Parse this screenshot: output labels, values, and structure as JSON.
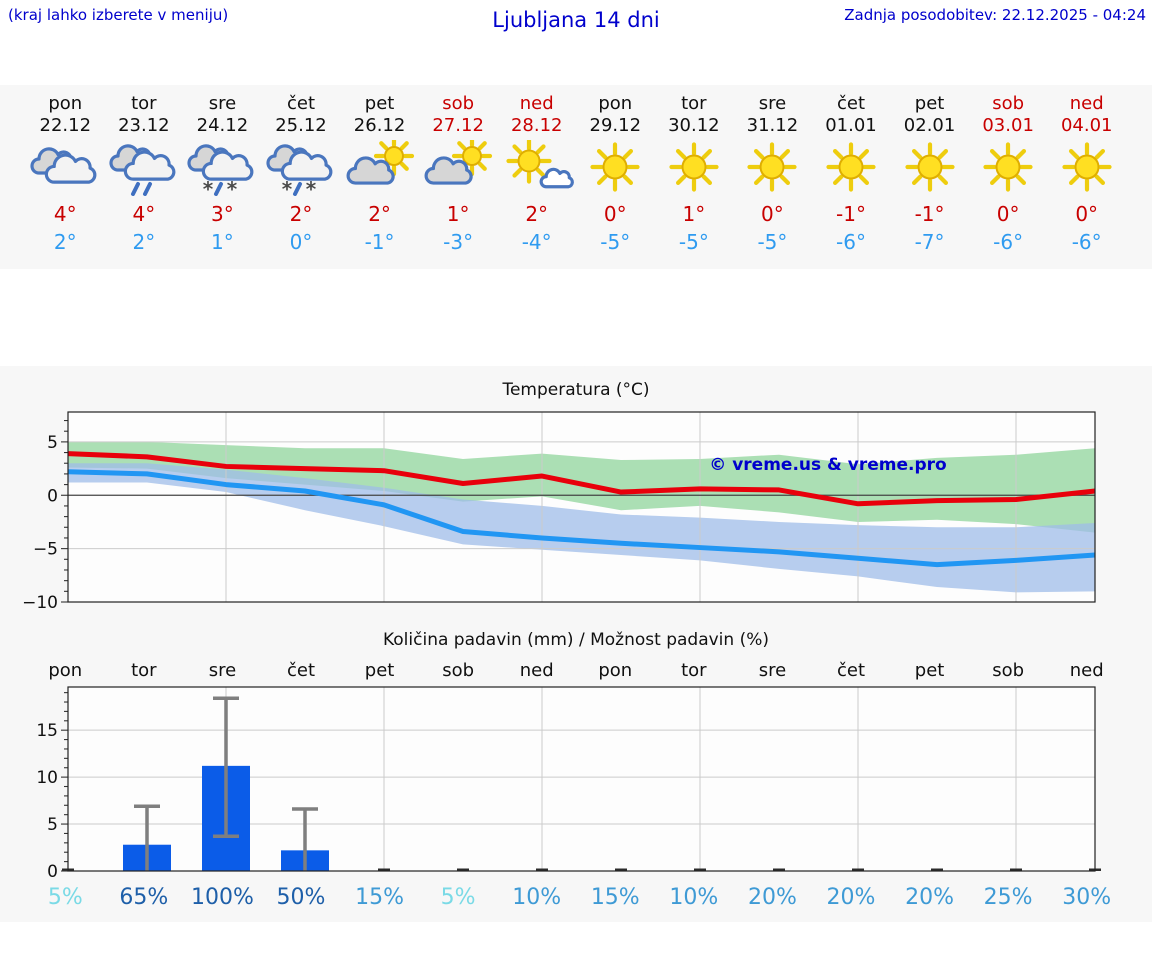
{
  "header": {
    "hint": "(kraj lahko izberete v meniju)",
    "title": "Ljubljana 14 dni",
    "updated": "Zadnja posodobitev: 22.12.2025 - 04:24"
  },
  "colors": {
    "accent_blue": "#0000cc",
    "weekend_red": "#c80000",
    "high_red": "#c80000",
    "low_blue": "#2f9bf0",
    "bar_blue": "#0b5ce8",
    "line_high": "#e8000b",
    "line_low": "#2196f3",
    "band_high": "#8fd49b",
    "band_low": "#9fbce8",
    "prob_low": "#7adae6",
    "prob_mid": "#3e9ad5",
    "prob_high": "#1e5fa9"
  },
  "days": [
    {
      "name": "pon",
      "date": "22.12",
      "weekend": false,
      "icon": "cloudy",
      "high": "4°",
      "low": "2°"
    },
    {
      "name": "tor",
      "date": "23.12",
      "weekend": false,
      "icon": "rain",
      "high": "4°",
      "low": "2°"
    },
    {
      "name": "sre",
      "date": "24.12",
      "weekend": false,
      "icon": "sleet",
      "high": "3°",
      "low": "1°"
    },
    {
      "name": "čet",
      "date": "25.12",
      "weekend": false,
      "icon": "sleet",
      "high": "2°",
      "low": "0°"
    },
    {
      "name": "pet",
      "date": "26.12",
      "weekend": false,
      "icon": "partly-sunny",
      "high": "2°",
      "low": "-1°"
    },
    {
      "name": "sob",
      "date": "27.12",
      "weekend": true,
      "icon": "partly-sunny",
      "high": "1°",
      "low": "-3°"
    },
    {
      "name": "ned",
      "date": "28.12",
      "weekend": true,
      "icon": "mostly-sunny",
      "high": "2°",
      "low": "-4°"
    },
    {
      "name": "pon",
      "date": "29.12",
      "weekend": false,
      "icon": "sunny",
      "high": "0°",
      "low": "-5°"
    },
    {
      "name": "tor",
      "date": "30.12",
      "weekend": false,
      "icon": "sunny",
      "high": "1°",
      "low": "-5°"
    },
    {
      "name": "sre",
      "date": "31.12",
      "weekend": false,
      "icon": "sunny",
      "high": "0°",
      "low": "-5°"
    },
    {
      "name": "čet",
      "date": "01.01",
      "weekend": false,
      "icon": "sunny",
      "high": "-1°",
      "low": "-6°"
    },
    {
      "name": "pet",
      "date": "02.01",
      "weekend": false,
      "icon": "sunny",
      "high": "-1°",
      "low": "-7°"
    },
    {
      "name": "sob",
      "date": "03.01",
      "weekend": true,
      "icon": "sunny",
      "high": "0°",
      "low": "-6°"
    },
    {
      "name": "ned",
      "date": "04.01",
      "weekend": true,
      "icon": "sunny",
      "high": "0°",
      "low": "-6°"
    }
  ],
  "chart_data": [
    {
      "type": "line",
      "title": "Temperatura (°C)",
      "categories": [
        "22.12",
        "23.12",
        "24.12",
        "25.12",
        "26.12",
        "27.12",
        "28.12",
        "29.12",
        "30.12",
        "31.12",
        "01.01",
        "02.01",
        "03.01",
        "04.01"
      ],
      "ylim": [
        -10,
        7.8
      ],
      "yticks": [
        5,
        0,
        -5,
        -10
      ],
      "grid": true,
      "watermark": "© vreme.us & vreme.pro",
      "series": [
        {
          "name": "temp-max",
          "color": "#e8000b",
          "values": [
            3.9,
            3.6,
            2.7,
            2.5,
            2.3,
            1.1,
            1.8,
            0.3,
            0.6,
            0.5,
            -0.8,
            -0.5,
            -0.4,
            0.4
          ]
        },
        {
          "name": "temp-min",
          "color": "#2196f3",
          "values": [
            2.2,
            2.0,
            1.0,
            0.4,
            -0.9,
            -3.4,
            -4.0,
            -4.5,
            -4.9,
            -5.3,
            -5.9,
            -6.5,
            -6.1,
            -5.6
          ]
        }
      ],
      "bands": [
        {
          "name": "temp-max-range",
          "color": "#8fd49b",
          "upper": [
            5.0,
            5.0,
            4.7,
            4.4,
            4.4,
            3.4,
            3.9,
            3.3,
            3.4,
            3.8,
            2.9,
            3.5,
            3.8,
            4.4
          ],
          "lower": [
            2.6,
            2.5,
            1.6,
            1.0,
            0.4,
            -0.6,
            -0.1,
            -1.4,
            -1.0,
            -1.6,
            -2.5,
            -2.3,
            -2.7,
            -3.5
          ]
        },
        {
          "name": "temp-min-range",
          "color": "#9fbce8",
          "upper": [
            3.0,
            3.0,
            2.4,
            1.6,
            0.7,
            -0.4,
            -1.0,
            -1.8,
            -2.1,
            -2.5,
            -2.8,
            -3.0,
            -3.0,
            -2.6
          ],
          "lower": [
            1.2,
            1.2,
            0.3,
            -1.4,
            -2.9,
            -4.6,
            -5.1,
            -5.6,
            -6.1,
            -6.9,
            -7.6,
            -8.6,
            -9.1,
            -9.0
          ]
        }
      ]
    },
    {
      "type": "bar",
      "title": "Količina padavin (mm) / Možnost padavin (%)",
      "categories": [
        "pon",
        "tor",
        "sre",
        "čet",
        "pet",
        "sob",
        "ned",
        "pon",
        "tor",
        "sre",
        "čet",
        "pet",
        "sob",
        "ned"
      ],
      "values": [
        0.1,
        2.8,
        11.2,
        2.2,
        0.1,
        0.1,
        0.1,
        0.1,
        0.1,
        0.1,
        0.1,
        0.1,
        0.1,
        0.1
      ],
      "whisker_low": [
        null,
        0,
        3.7,
        0,
        null,
        null,
        null,
        null,
        null,
        null,
        null,
        null,
        null,
        null
      ],
      "whisker_high": [
        null,
        6.9,
        18.4,
        6.6,
        null,
        null,
        null,
        null,
        null,
        null,
        null,
        null,
        null,
        null
      ],
      "bar_color": "#0b5ce8",
      "ylim": [
        0,
        19.6
      ],
      "yticks": [
        0,
        5,
        10,
        15
      ],
      "grid": true,
      "probabilities": [
        "5%",
        "65%",
        "100%",
        "50%",
        "15%",
        "5%",
        "10%",
        "15%",
        "10%",
        "20%",
        "20%",
        "20%",
        "25%",
        "30%"
      ],
      "prob_colors": [
        "#7adae6",
        "#1e5fa9",
        "#1e5fa9",
        "#1e5fa9",
        "#3e9ad5",
        "#7adae6",
        "#3e9ad5",
        "#3e9ad5",
        "#3e9ad5",
        "#3e9ad5",
        "#3e9ad5",
        "#3e9ad5",
        "#3e9ad5",
        "#3e9ad5"
      ]
    }
  ]
}
